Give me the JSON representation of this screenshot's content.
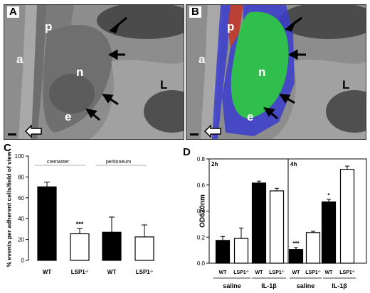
{
  "panels": {
    "a": {
      "letter": "A",
      "labels": {
        "p": "p",
        "a": "a",
        "n": "n",
        "e": "e",
        "L": "L"
      }
    },
    "b": {
      "letter": "B",
      "labels": {
        "p": "p",
        "a": "a",
        "n": "n",
        "e": "e",
        "L": "L"
      }
    },
    "c": {
      "letter": "C"
    },
    "d": {
      "letter": "D"
    }
  },
  "colors": {
    "wt_bar": "#000000",
    "lsp1_bar": "#ffffff",
    "overlay_red": "#c0392b",
    "overlay_green": "#2ecc40",
    "overlay_blue": "#3a3dcc"
  },
  "chart_data": [
    {
      "type": "bar",
      "ylabel": "% events per adherent cells/field of view",
      "ylim": [
        0,
        100
      ],
      "yticks": [
        0,
        20,
        40,
        60,
        80,
        100
      ],
      "groups": [
        "cremaster",
        "peritoneum"
      ],
      "categories": [
        "WT",
        "LSP1-/-",
        "WT",
        "LSP1-/-"
      ],
      "values": [
        70.5,
        25.5,
        27,
        22.5
      ],
      "errors": [
        4.5,
        5,
        14.5,
        11.5
      ],
      "fills": [
        "black",
        "white",
        "black",
        "white"
      ],
      "annotations": [
        "",
        "***",
        "",
        ""
      ]
    },
    {
      "type": "bar",
      "ylabel": "OD620nm",
      "ylim": [
        0,
        0.8
      ],
      "yticks": [
        "0.0",
        "0.2",
        "0.4",
        "0.6",
        "0.8"
      ],
      "time_labels": [
        "2h",
        "4h"
      ],
      "treatments": [
        "saline",
        "IL-1β",
        "saline",
        "IL-1β"
      ],
      "categories": [
        "WT",
        "LSP1-/-",
        "WT",
        "LSP1-/-",
        "WT",
        "LSP1-/-",
        "WT",
        "LSP1-/-"
      ],
      "values": [
        0.175,
        0.19,
        0.615,
        0.555,
        0.105,
        0.235,
        0.47,
        0.72
      ],
      "errors": [
        0.03,
        0.08,
        0.015,
        0.02,
        0.015,
        0.01,
        0.02,
        0.025
      ],
      "fills": [
        "black",
        "white",
        "black",
        "white",
        "black",
        "white",
        "black",
        "white"
      ],
      "annotations": [
        "",
        "",
        "",
        "",
        "***",
        "",
        "*",
        ""
      ]
    }
  ]
}
